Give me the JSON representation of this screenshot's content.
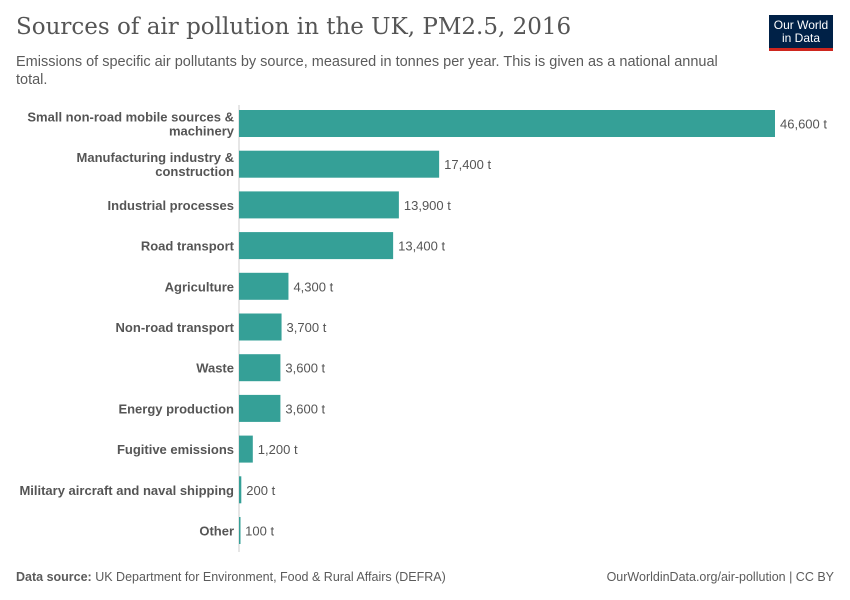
{
  "header": {
    "title": "Sources of air pollution in the UK, PM2.5, 2016",
    "subtitle": "Emissions of specific air pollutants by source, measured in tonnes per year. This is given as a national annual total.",
    "logo": "Our World in Data"
  },
  "footer": {
    "source_label": "Data source:",
    "source": "UK Department for Environment, Food & Rural Affairs (DEFRA)",
    "url": "OurWorldinData.org/air-pollution | CC BY"
  },
  "chart_data": {
    "type": "bar",
    "orientation": "horizontal",
    "title": "Sources of air pollution in the UK, PM2.5, 2016",
    "unit": "t",
    "bar_color": "#35a097",
    "categories": [
      "Small non-road mobile sources & machinery",
      "Manufacturing industry & construction",
      "Industrial processes",
      "Road transport",
      "Agriculture",
      "Non-road transport",
      "Waste",
      "Energy production",
      "Fugitive emissions",
      "Military aircraft and naval shipping",
      "Other"
    ],
    "values": [
      46600,
      17400,
      13900,
      13400,
      4300,
      3700,
      3600,
      3600,
      1200,
      200,
      100
    ],
    "labels": [
      "46,600 t",
      "17,400 t",
      "13,900 t",
      "13,400 t",
      "4,300 t",
      "3,700 t",
      "3,600 t",
      "3,600 t",
      "1,200 t",
      "200 t",
      "100 t"
    ]
  }
}
